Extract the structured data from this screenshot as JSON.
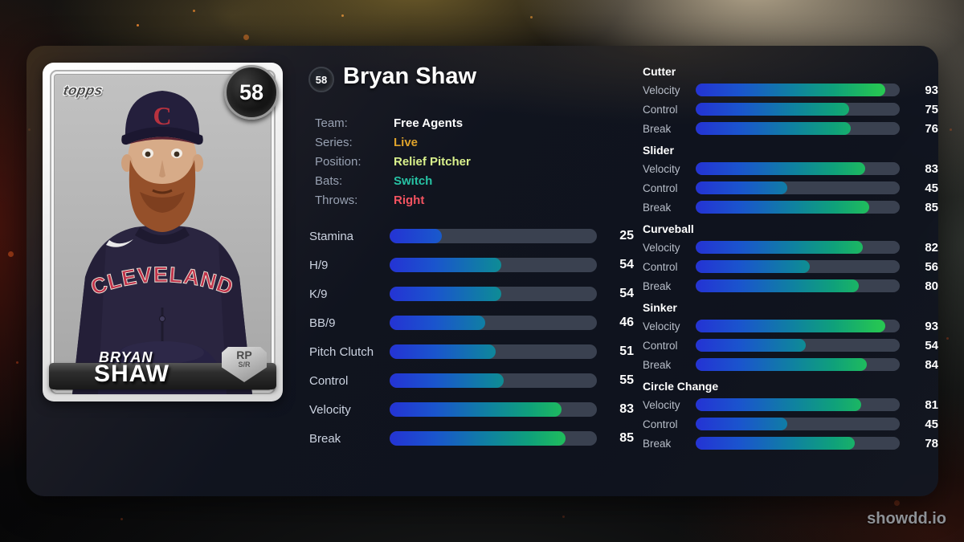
{
  "watermark": "showdd.io",
  "player": {
    "rating": "58",
    "name": "Bryan Shaw",
    "info": [
      {
        "label": "Team:",
        "value": "Free Agents",
        "color": "#ffffff"
      },
      {
        "label": "Series:",
        "value": "Live",
        "color": "#dfa32b"
      },
      {
        "label": "Position:",
        "value": "Relief Pitcher",
        "color": "#d9f18c"
      },
      {
        "label": "Bats:",
        "value": "Switch",
        "color": "#27c2a4"
      },
      {
        "label": "Throws:",
        "value": "Right",
        "color": "#f25360"
      }
    ]
  },
  "card": {
    "brand": "topps",
    "rating": "58",
    "first_name": "BRYAN",
    "last_name": "SHAW",
    "jersey_text": "CLEVELAND",
    "cap_letter": "C",
    "position_badge": "RP",
    "handedness_badge": "S/R"
  },
  "attributes": [
    {
      "label": "Stamina",
      "value": 25
    },
    {
      "label": "H/9",
      "value": 54
    },
    {
      "label": "K/9",
      "value": 54
    },
    {
      "label": "BB/9",
      "value": 46
    },
    {
      "label": "Pitch Clutch",
      "value": 51
    },
    {
      "label": "Control",
      "value": 55
    },
    {
      "label": "Velocity",
      "value": 83
    },
    {
      "label": "Break",
      "value": 85
    }
  ],
  "pitches": [
    {
      "name": "Cutter",
      "stats": [
        {
          "label": "Velocity",
          "value": 93
        },
        {
          "label": "Control",
          "value": 75
        },
        {
          "label": "Break",
          "value": 76
        }
      ]
    },
    {
      "name": "Slider",
      "stats": [
        {
          "label": "Velocity",
          "value": 83
        },
        {
          "label": "Control",
          "value": 45
        },
        {
          "label": "Break",
          "value": 85
        }
      ]
    },
    {
      "name": "Curveball",
      "stats": [
        {
          "label": "Velocity",
          "value": 82
        },
        {
          "label": "Control",
          "value": 56
        },
        {
          "label": "Break",
          "value": 80
        }
      ]
    },
    {
      "name": "Sinker",
      "stats": [
        {
          "label": "Velocity",
          "value": 93
        },
        {
          "label": "Control",
          "value": 54
        },
        {
          "label": "Break",
          "value": 84
        }
      ]
    },
    {
      "name": "Circle Change",
      "stats": [
        {
          "label": "Velocity",
          "value": 81
        },
        {
          "label": "Control",
          "value": 45
        },
        {
          "label": "Break",
          "value": 78
        }
      ]
    }
  ],
  "colors": {
    "bar_track": "#3a4150",
    "bar_gradient_start": "#2433d4",
    "bar_gradient_mid": "#0f82a0",
    "bar_gradient_end": "#2ed24d"
  }
}
